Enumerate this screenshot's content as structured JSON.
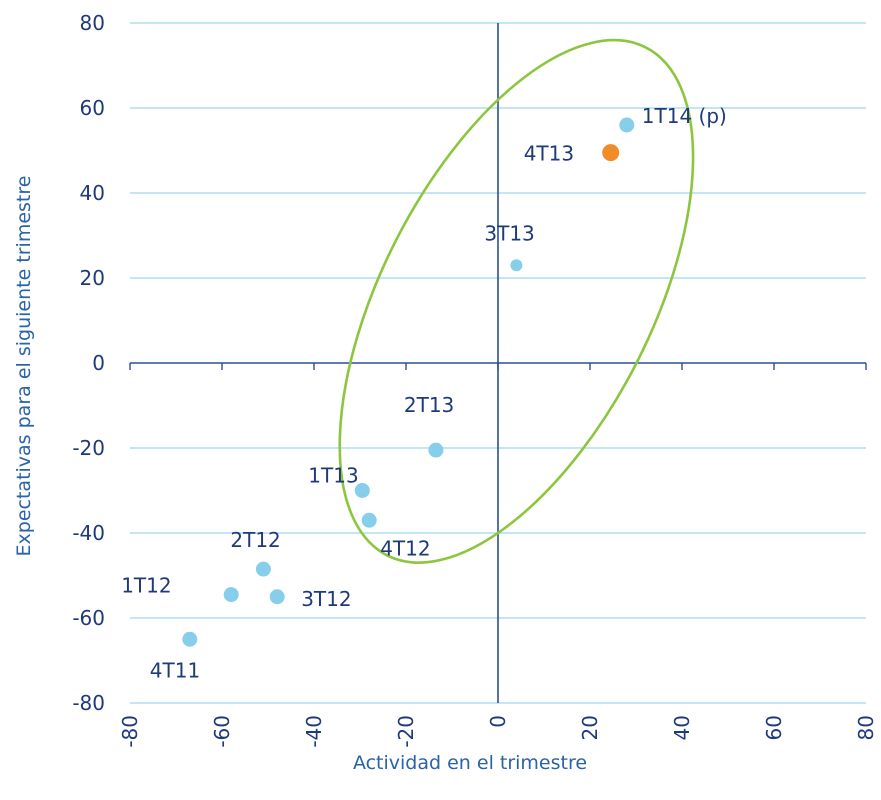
{
  "chart_data": {
    "type": "scatter",
    "xlabel": "Actividad en el trimestre",
    "ylabel": "Expectativas para el siguiente trimestre",
    "xlim": [
      -80,
      80
    ],
    "ylim": [
      -80,
      80
    ],
    "xticks": [
      "-80",
      "-60",
      "-40",
      "-20",
      "0",
      "20",
      "40",
      "60",
      "80"
    ],
    "yticks": [
      "80",
      "60",
      "40",
      "20",
      "0",
      "-20",
      "-40",
      "-60",
      "-80"
    ],
    "grid": "horizontal",
    "colors": {
      "point": "#87ceeb",
      "highlight": "#f28c28",
      "grid": "#9ed8ea",
      "axis": "#2a4f9c",
      "ellipse": "#8cc63f"
    },
    "points": [
      {
        "label": "4T11",
        "x": -67,
        "y": -65
      },
      {
        "label": "1T12",
        "x": -58,
        "y": -54.5
      },
      {
        "label": "2T12",
        "x": -51,
        "y": -48.5
      },
      {
        "label": "3T12",
        "x": -48,
        "y": -55
      },
      {
        "label": "4T12",
        "x": -28,
        "y": -37
      },
      {
        "label": "1T13",
        "x": -29.5,
        "y": -30
      },
      {
        "label": "2T13",
        "x": -13.5,
        "y": -20.5
      },
      {
        "label": "3T13",
        "x": 4,
        "y": 23
      },
      {
        "label": "4T13",
        "x": 24.5,
        "y": 49.5,
        "highlight": true
      },
      {
        "label": "1T14 (p)",
        "x": 28,
        "y": 56
      }
    ]
  }
}
